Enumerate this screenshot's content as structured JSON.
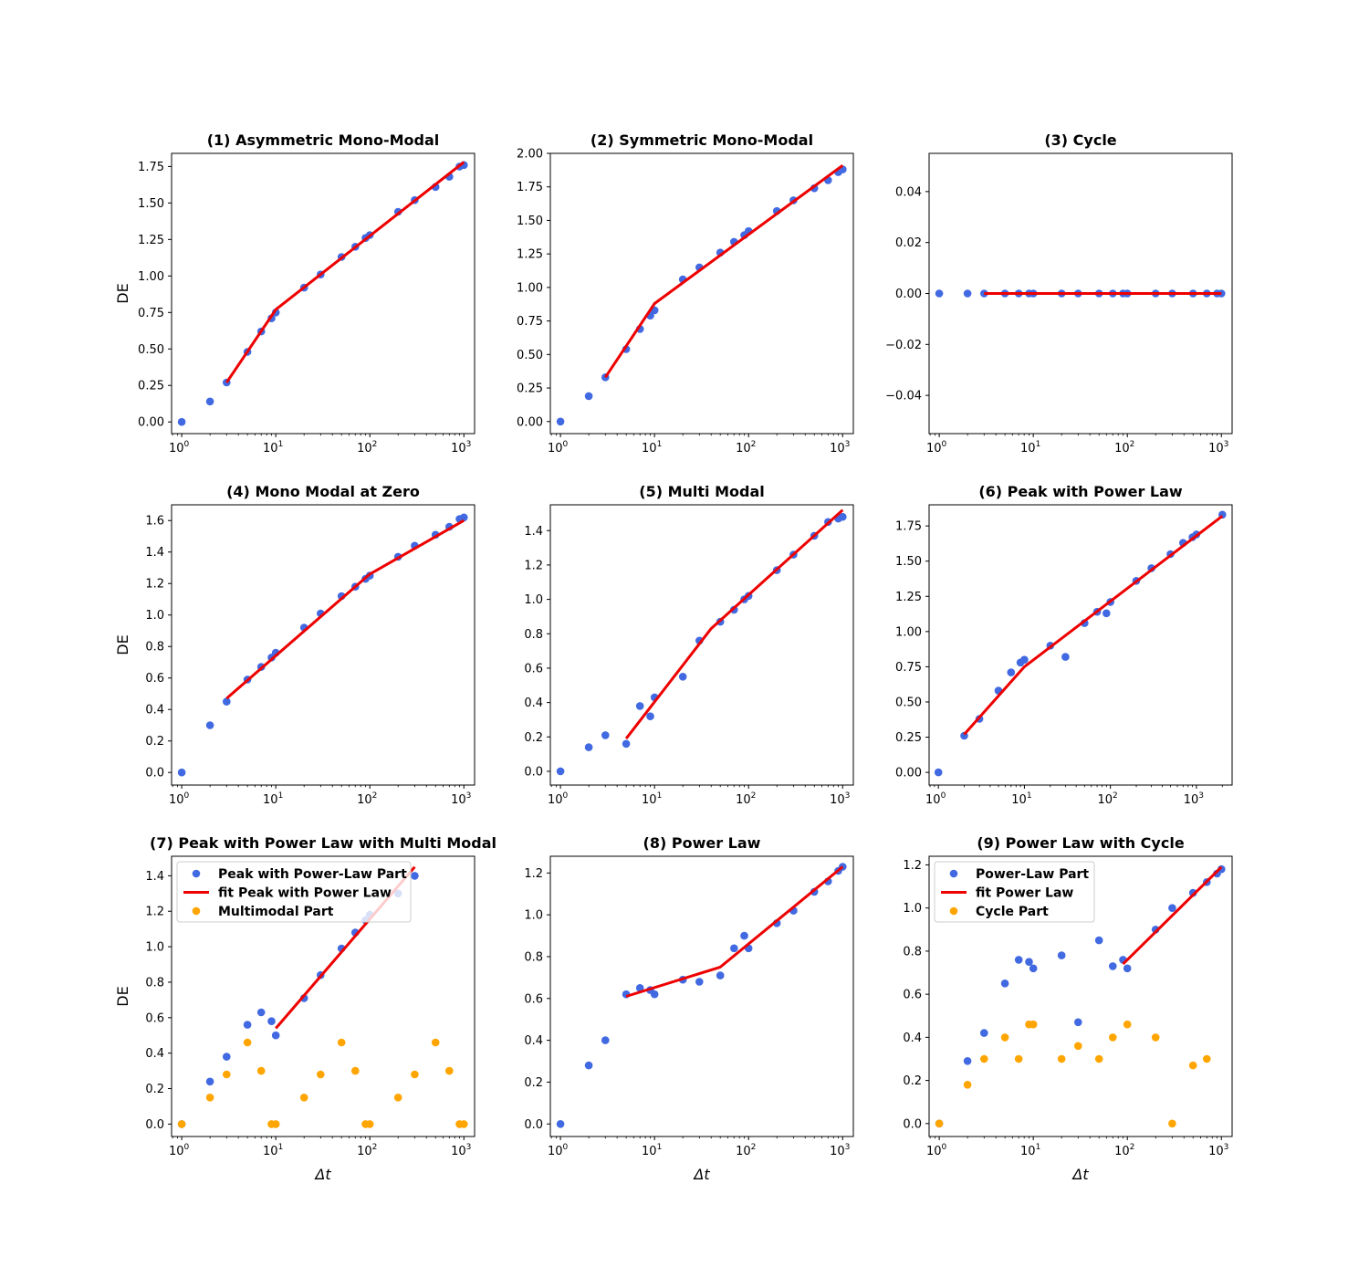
{
  "colors": {
    "points": "#4169e1",
    "fit": "#ee0000",
    "secondary": "#ffa500",
    "axis": "#000000"
  },
  "chart_data": [
    {
      "type": "scatter",
      "title": "(1) Asymmetric Mono-Modal",
      "xscale": "log",
      "xlim": [
        0.78,
        1300
      ],
      "ylim": [
        -0.08,
        1.84
      ],
      "xticks": [
        1,
        10,
        100,
        1000
      ],
      "xtick_labels": [
        {
          "base": "10",
          "exp": "0"
        },
        {
          "base": "10",
          "exp": "1"
        },
        {
          "base": "10",
          "exp": "2"
        },
        {
          "base": "10",
          "exp": "3"
        }
      ],
      "yticks": [
        0,
        0.25,
        0.5,
        0.75,
        1,
        1.25,
        1.5,
        1.75
      ],
      "ytick_labels": [
        "0.00",
        "0.25",
        "0.50",
        "0.75",
        "1.00",
        "1.25",
        "1.50",
        "1.75"
      ],
      "ylabel": "DE",
      "xlabel": "",
      "series": [
        {
          "name": "points",
          "kind": "scatter",
          "color": "points",
          "x": [
            1,
            2,
            3,
            5,
            7,
            9,
            10,
            20,
            30,
            50,
            70,
            90,
            100,
            200,
            300,
            500,
            700,
            900,
            1000
          ],
          "y": [
            0,
            0.14,
            0.27,
            0.48,
            0.62,
            0.71,
            0.75,
            0.92,
            1.01,
            1.13,
            1.2,
            1.26,
            1.28,
            1.44,
            1.52,
            1.61,
            1.68,
            1.75,
            1.76
          ]
        },
        {
          "name": "fit",
          "kind": "line",
          "color": "fit",
          "x": [
            3,
            10,
            1000
          ],
          "y": [
            0.27,
            0.77,
            1.78
          ]
        }
      ]
    },
    {
      "type": "scatter",
      "title": "(2) Symmetric Mono-Modal",
      "xscale": "log",
      "xlim": [
        0.78,
        1300
      ],
      "ylim": [
        -0.09,
        2.0
      ],
      "xticks": [
        1,
        10,
        100,
        1000
      ],
      "xtick_labels": [
        {
          "base": "10",
          "exp": "0"
        },
        {
          "base": "10",
          "exp": "1"
        },
        {
          "base": "10",
          "exp": "2"
        },
        {
          "base": "10",
          "exp": "3"
        }
      ],
      "yticks": [
        0,
        0.25,
        0.5,
        0.75,
        1,
        1.25,
        1.5,
        1.75,
        2
      ],
      "ytick_labels": [
        "0.00",
        "0.25",
        "0.50",
        "0.75",
        "1.00",
        "1.25",
        "1.50",
        "1.75",
        "2.00"
      ],
      "ylabel": "",
      "xlabel": "",
      "series": [
        {
          "name": "points",
          "kind": "scatter",
          "color": "points",
          "x": [
            1,
            2,
            3,
            5,
            7,
            9,
            10,
            20,
            30,
            50,
            70,
            90,
            100,
            200,
            300,
            500,
            700,
            900,
            1000
          ],
          "y": [
            0,
            0.19,
            0.33,
            0.54,
            0.69,
            0.79,
            0.83,
            1.06,
            1.15,
            1.26,
            1.34,
            1.39,
            1.42,
            1.57,
            1.65,
            1.74,
            1.8,
            1.86,
            1.88
          ]
        },
        {
          "name": "fit",
          "kind": "line",
          "color": "fit",
          "x": [
            3,
            10,
            1000
          ],
          "y": [
            0.33,
            0.88,
            1.91
          ]
        }
      ]
    },
    {
      "type": "scatter",
      "title": "(3) Cycle",
      "xscale": "log",
      "xlim": [
        0.78,
        1300
      ],
      "ylim": [
        -0.055,
        0.055
      ],
      "xticks": [
        1,
        10,
        100,
        1000
      ],
      "xtick_labels": [
        {
          "base": "10",
          "exp": "0"
        },
        {
          "base": "10",
          "exp": "1"
        },
        {
          "base": "10",
          "exp": "2"
        },
        {
          "base": "10",
          "exp": "3"
        }
      ],
      "yticks": [
        -0.04,
        -0.02,
        0,
        0.02,
        0.04
      ],
      "ytick_labels": [
        "−0.04",
        "−0.02",
        "0.00",
        "0.02",
        "0.04"
      ],
      "ylabel": "",
      "xlabel": "",
      "series": [
        {
          "name": "points",
          "kind": "scatter",
          "color": "points",
          "x": [
            1,
            2,
            3,
            5,
            7,
            9,
            10,
            20,
            30,
            50,
            70,
            90,
            100,
            200,
            300,
            500,
            700,
            900,
            1000
          ],
          "y": [
            0,
            0,
            0,
            0,
            0,
            0,
            0,
            0,
            0,
            0,
            0,
            0,
            0,
            0,
            0,
            0,
            0,
            0,
            0
          ]
        },
        {
          "name": "fit",
          "kind": "line",
          "color": "fit",
          "x": [
            3,
            1000
          ],
          "y": [
            0,
            0
          ]
        }
      ]
    },
    {
      "type": "scatter",
      "title": "(4) Mono Modal at Zero",
      "xscale": "log",
      "xlim": [
        0.78,
        1300
      ],
      "ylim": [
        -0.08,
        1.7
      ],
      "xticks": [
        1,
        10,
        100,
        1000
      ],
      "xtick_labels": [
        {
          "base": "10",
          "exp": "0"
        },
        {
          "base": "10",
          "exp": "1"
        },
        {
          "base": "10",
          "exp": "2"
        },
        {
          "base": "10",
          "exp": "3"
        }
      ],
      "yticks": [
        0,
        0.2,
        0.4,
        0.6,
        0.8,
        1.0,
        1.2,
        1.4,
        1.6
      ],
      "ytick_labels": [
        "0.0",
        "0.2",
        "0.4",
        "0.6",
        "0.8",
        "1.0",
        "1.2",
        "1.4",
        "1.6"
      ],
      "ylabel": "DE",
      "xlabel": "",
      "series": [
        {
          "name": "points",
          "kind": "scatter",
          "color": "points",
          "x": [
            1,
            2,
            3,
            5,
            7,
            9,
            10,
            20,
            30,
            50,
            70,
            90,
            100,
            200,
            300,
            500,
            700,
            900,
            1000
          ],
          "y": [
            0,
            0.3,
            0.45,
            0.59,
            0.67,
            0.73,
            0.76,
            0.92,
            1.01,
            1.12,
            1.18,
            1.23,
            1.25,
            1.37,
            1.44,
            1.51,
            1.56,
            1.61,
            1.62
          ]
        },
        {
          "name": "fit",
          "kind": "line",
          "color": "fit",
          "x": [
            3,
            100,
            1000
          ],
          "y": [
            0.47,
            1.26,
            1.6
          ]
        }
      ]
    },
    {
      "type": "scatter",
      "title": "(5) Multi Modal",
      "xscale": "log",
      "xlim": [
        0.78,
        1300
      ],
      "ylim": [
        -0.08,
        1.55
      ],
      "xticks": [
        1,
        10,
        100,
        1000
      ],
      "xtick_labels": [
        {
          "base": "10",
          "exp": "0"
        },
        {
          "base": "10",
          "exp": "1"
        },
        {
          "base": "10",
          "exp": "2"
        },
        {
          "base": "10",
          "exp": "3"
        }
      ],
      "yticks": [
        0,
        0.2,
        0.4,
        0.6,
        0.8,
        1.0,
        1.2,
        1.4
      ],
      "ytick_labels": [
        "0.0",
        "0.2",
        "0.4",
        "0.6",
        "0.8",
        "1.0",
        "1.2",
        "1.4"
      ],
      "ylabel": "",
      "xlabel": "",
      "series": [
        {
          "name": "points",
          "kind": "scatter",
          "color": "points",
          "x": [
            1,
            2,
            3,
            5,
            7,
            9,
            10,
            20,
            30,
            50,
            70,
            90,
            100,
            200,
            300,
            500,
            700,
            900,
            1000
          ],
          "y": [
            0,
            0.14,
            0.21,
            0.16,
            0.38,
            0.32,
            0.43,
            0.55,
            0.76,
            0.87,
            0.94,
            1.0,
            1.02,
            1.17,
            1.26,
            1.37,
            1.45,
            1.47,
            1.48
          ]
        },
        {
          "name": "fit",
          "kind": "line",
          "color": "fit",
          "x": [
            5,
            40,
            1000
          ],
          "y": [
            0.19,
            0.83,
            1.52
          ]
        }
      ]
    },
    {
      "type": "scatter",
      "title": "(6) Peak with Power Law",
      "xscale": "log",
      "xlim": [
        0.78,
        2600
      ],
      "ylim": [
        -0.09,
        1.9
      ],
      "xticks": [
        1,
        10,
        100,
        1000
      ],
      "xtick_labels": [
        {
          "base": "10",
          "exp": "0"
        },
        {
          "base": "10",
          "exp": "1"
        },
        {
          "base": "10",
          "exp": "2"
        },
        {
          "base": "10",
          "exp": "3"
        }
      ],
      "yticks": [
        0,
        0.25,
        0.5,
        0.75,
        1,
        1.25,
        1.5,
        1.75
      ],
      "ytick_labels": [
        "0.00",
        "0.25",
        "0.50",
        "0.75",
        "1.00",
        "1.25",
        "1.50",
        "1.75"
      ],
      "ylabel": "",
      "xlabel": "",
      "series": [
        {
          "name": "points",
          "kind": "scatter",
          "color": "points",
          "x": [
            1,
            2,
            3,
            5,
            7,
            9,
            10,
            20,
            30,
            50,
            70,
            90,
            100,
            200,
            300,
            500,
            700,
            900,
            1000,
            2000
          ],
          "y": [
            0,
            0.26,
            0.38,
            0.58,
            0.71,
            0.78,
            0.8,
            0.9,
            0.82,
            1.06,
            1.14,
            1.13,
            1.21,
            1.36,
            1.45,
            1.55,
            1.63,
            1.67,
            1.69,
            1.83
          ]
        },
        {
          "name": "fit",
          "kind": "line",
          "color": "fit",
          "x": [
            2,
            10,
            2000
          ],
          "y": [
            0.27,
            0.75,
            1.82
          ]
        }
      ]
    },
    {
      "type": "scatter",
      "title": "(7) Peak with Power Law with Multi Modal",
      "xscale": "log",
      "xlim": [
        0.78,
        1300
      ],
      "ylim": [
        -0.07,
        1.51
      ],
      "xticks": [
        1,
        10,
        100,
        1000
      ],
      "xtick_labels": [
        {
          "base": "10",
          "exp": "0"
        },
        {
          "base": "10",
          "exp": "1"
        },
        {
          "base": "10",
          "exp": "2"
        },
        {
          "base": "10",
          "exp": "3"
        }
      ],
      "yticks": [
        0,
        0.2,
        0.4,
        0.6,
        0.8,
        1.0,
        1.2,
        1.4
      ],
      "ytick_labels": [
        "0.0",
        "0.2",
        "0.4",
        "0.6",
        "0.8",
        "1.0",
        "1.2",
        "1.4"
      ],
      "ylabel": "DE",
      "xlabel": "Δt",
      "legend": [
        "Peak with Power-Law Part",
        "fit Peak with Power Law",
        "Multimodal Part"
      ],
      "series": [
        {
          "name": "Peak with Power-Law Part",
          "kind": "scatter",
          "color": "points",
          "x": [
            1,
            2,
            3,
            5,
            7,
            9,
            10,
            20,
            30,
            50,
            70,
            90,
            100,
            200,
            300
          ],
          "y": [
            0,
            0.24,
            0.38,
            0.56,
            0.63,
            0.58,
            0.5,
            0.71,
            0.84,
            0.99,
            1.08,
            1.15,
            1.18,
            1.3,
            1.4
          ]
        },
        {
          "name": "fit Peak with Power Law",
          "kind": "line",
          "color": "fit",
          "x": [
            10,
            300
          ],
          "y": [
            0.54,
            1.45
          ]
        },
        {
          "name": "Multimodal Part",
          "kind": "scatter",
          "color": "secondary",
          "x": [
            1,
            2,
            3,
            5,
            7,
            9,
            10,
            20,
            30,
            50,
            70,
            90,
            100,
            200,
            300,
            500,
            700,
            900,
            1000
          ],
          "y": [
            0,
            0.15,
            0.28,
            0.46,
            0.3,
            0,
            0,
            0.15,
            0.28,
            0.46,
            0.3,
            0,
            0,
            0.15,
            0.28,
            0.46,
            0.3,
            0,
            0
          ]
        }
      ]
    },
    {
      "type": "scatter",
      "title": "(8) Power Law",
      "xscale": "log",
      "xlim": [
        0.78,
        1300
      ],
      "ylim": [
        -0.06,
        1.28
      ],
      "xticks": [
        1,
        10,
        100,
        1000
      ],
      "xtick_labels": [
        {
          "base": "10",
          "exp": "0"
        },
        {
          "base": "10",
          "exp": "1"
        },
        {
          "base": "10",
          "exp": "2"
        },
        {
          "base": "10",
          "exp": "3"
        }
      ],
      "yticks": [
        0,
        0.2,
        0.4,
        0.6,
        0.8,
        1.0,
        1.2
      ],
      "ytick_labels": [
        "0.0",
        "0.2",
        "0.4",
        "0.6",
        "0.8",
        "1.0",
        "1.2"
      ],
      "ylabel": "",
      "xlabel": "Δt",
      "series": [
        {
          "name": "points",
          "kind": "scatter",
          "color": "points",
          "x": [
            1,
            2,
            3,
            5,
            7,
            9,
            10,
            20,
            30,
            50,
            70,
            90,
            100,
            200,
            300,
            500,
            700,
            900,
            1000
          ],
          "y": [
            0,
            0.28,
            0.4,
            0.62,
            0.65,
            0.64,
            0.62,
            0.69,
            0.68,
            0.71,
            0.84,
            0.9,
            0.84,
            0.96,
            1.02,
            1.11,
            1.16,
            1.21,
            1.23
          ]
        },
        {
          "name": "fit",
          "kind": "line",
          "color": "fit",
          "x": [
            5,
            50,
            1000
          ],
          "y": [
            0.61,
            0.75,
            1.23
          ]
        }
      ]
    },
    {
      "type": "scatter",
      "title": "(9) Power Law with Cycle",
      "xscale": "log",
      "xlim": [
        0.78,
        1300
      ],
      "ylim": [
        -0.06,
        1.24
      ],
      "xticks": [
        1,
        10,
        100,
        1000
      ],
      "xtick_labels": [
        {
          "base": "10",
          "exp": "0"
        },
        {
          "base": "10",
          "exp": "1"
        },
        {
          "base": "10",
          "exp": "2"
        },
        {
          "base": "10",
          "exp": "3"
        }
      ],
      "yticks": [
        0,
        0.2,
        0.4,
        0.6,
        0.8,
        1.0,
        1.2
      ],
      "ytick_labels": [
        "0.0",
        "0.2",
        "0.4",
        "0.6",
        "0.8",
        "1.0",
        "1.2"
      ],
      "ylabel": "",
      "xlabel": "Δt",
      "legend": [
        "Power-Law Part",
        "fit Power Law",
        "Cycle Part"
      ],
      "series": [
        {
          "name": "Power-Law Part",
          "kind": "scatter",
          "color": "points",
          "x": [
            1,
            2,
            3,
            5,
            7,
            9,
            10,
            20,
            30,
            50,
            70,
            90,
            100,
            200,
            300,
            500,
            700,
            900,
            1000
          ],
          "y": [
            0,
            0.29,
            0.42,
            0.65,
            0.76,
            0.75,
            0.72,
            0.78,
            0.47,
            0.85,
            0.73,
            0.76,
            0.72,
            0.9,
            1.0,
            1.07,
            1.12,
            1.16,
            1.18
          ]
        },
        {
          "name": "fit Power Law",
          "kind": "line",
          "color": "fit",
          "x": [
            90,
            1000
          ],
          "y": [
            0.74,
            1.19
          ]
        },
        {
          "name": "Cycle Part",
          "kind": "scatter",
          "color": "secondary",
          "x": [
            1,
            2,
            3,
            5,
            7,
            9,
            10,
            20,
            30,
            50,
            70,
            100,
            200,
            300,
            500,
            700
          ],
          "y": [
            0,
            0.18,
            0.3,
            0.4,
            0.3,
            0.46,
            0.46,
            0.3,
            0.36,
            0.3,
            0.4,
            0.46,
            0.4,
            0,
            0.27,
            0.3
          ]
        }
      ]
    }
  ]
}
